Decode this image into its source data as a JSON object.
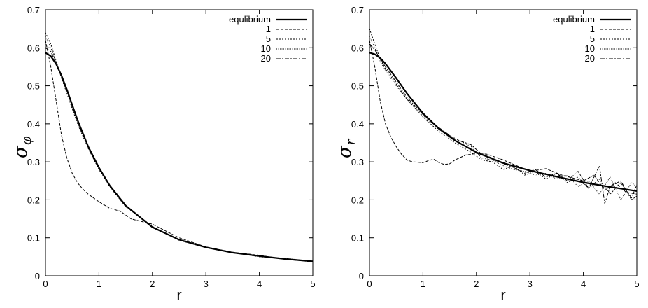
{
  "chart_data": [
    {
      "type": "line",
      "xlabel": "r",
      "ylabel": "σ",
      "ylabel_subscript": "φ",
      "xlim": [
        0,
        5
      ],
      "ylim": [
        0,
        0.7
      ],
      "x_ticks": [
        0,
        1,
        2,
        3,
        4,
        5
      ],
      "y_ticks": [
        0,
        0.1,
        0.2,
        0.3,
        0.4,
        0.5,
        0.6,
        0.7
      ],
      "grid": false,
      "legend_position": "top-right",
      "series": [
        {
          "name": "equlibrium",
          "style": "thick-solid",
          "x": [
            0,
            0.1,
            0.2,
            0.3,
            0.4,
            0.5,
            0.6,
            0.8,
            1.0,
            1.2,
            1.5,
            2.0,
            2.5,
            3.0,
            3.5,
            4.0,
            4.5,
            5.0
          ],
          "y": [
            0.587,
            0.578,
            0.557,
            0.527,
            0.49,
            0.45,
            0.41,
            0.34,
            0.285,
            0.238,
            0.185,
            0.128,
            0.095,
            0.075,
            0.061,
            0.052,
            0.044,
            0.038
          ]
        },
        {
          "name": "1",
          "style": "dashed",
          "x": [
            0,
            0.1,
            0.2,
            0.3,
            0.4,
            0.5,
            0.6,
            0.7,
            0.8,
            1.0,
            1.2,
            1.4,
            1.6,
            1.8,
            2.0,
            2.5,
            3.0,
            3.5,
            4.0,
            4.5,
            5.0
          ],
          "y": [
            0.62,
            0.55,
            0.46,
            0.37,
            0.31,
            0.27,
            0.245,
            0.228,
            0.215,
            0.195,
            0.178,
            0.17,
            0.15,
            0.143,
            0.136,
            0.1,
            0.076,
            0.062,
            0.054,
            0.043,
            0.037
          ]
        },
        {
          "name": "5",
          "style": "dotted",
          "x": [
            0,
            0.1,
            0.2,
            0.3,
            0.4,
            0.5,
            0.6,
            0.8,
            1.0,
            1.2,
            1.5,
            2.0,
            2.5,
            3.0,
            3.5,
            4.0,
            4.5,
            5.0
          ],
          "y": [
            0.64,
            0.61,
            0.565,
            0.52,
            0.48,
            0.44,
            0.4,
            0.335,
            0.28,
            0.235,
            0.182,
            0.13,
            0.093,
            0.076,
            0.06,
            0.051,
            0.045,
            0.036
          ]
        },
        {
          "name": "10",
          "style": "fine-dotted",
          "x": [
            0,
            0.1,
            0.2,
            0.3,
            0.4,
            0.5,
            0.6,
            0.8,
            1.0,
            1.2,
            1.5,
            2.0,
            2.5,
            3.0,
            3.5,
            4.0,
            4.5,
            5.0
          ],
          "y": [
            0.63,
            0.6,
            0.56,
            0.522,
            0.485,
            0.446,
            0.405,
            0.338,
            0.283,
            0.236,
            0.184,
            0.127,
            0.096,
            0.074,
            0.062,
            0.05,
            0.046,
            0.037
          ]
        },
        {
          "name": "20",
          "style": "dash-dot",
          "x": [
            0,
            0.1,
            0.2,
            0.3,
            0.4,
            0.5,
            0.6,
            0.8,
            1.0,
            1.2,
            1.5,
            2.0,
            2.5,
            3.0,
            3.5,
            4.0,
            4.5,
            5.0
          ],
          "y": [
            0.6,
            0.59,
            0.558,
            0.525,
            0.488,
            0.448,
            0.408,
            0.339,
            0.284,
            0.237,
            0.185,
            0.129,
            0.094,
            0.075,
            0.061,
            0.053,
            0.044,
            0.039
          ]
        }
      ]
    },
    {
      "type": "line",
      "xlabel": "r",
      "ylabel": "σ",
      "ylabel_subscript": "r",
      "xlim": [
        0,
        5
      ],
      "ylim": [
        0,
        0.7
      ],
      "x_ticks": [
        0,
        1,
        2,
        3,
        4,
        5
      ],
      "y_ticks": [
        0,
        0.1,
        0.2,
        0.3,
        0.4,
        0.5,
        0.6,
        0.7
      ],
      "grid": false,
      "legend_position": "top-right",
      "series": [
        {
          "name": "equlibrium",
          "style": "thick-solid",
          "x": [
            0,
            0.1,
            0.2,
            0.3,
            0.5,
            0.7,
            1.0,
            1.3,
            1.6,
            2.0,
            2.5,
            3.0,
            3.5,
            4.0,
            4.5,
            5.0
          ],
          "y": [
            0.587,
            0.583,
            0.573,
            0.558,
            0.52,
            0.48,
            0.428,
            0.387,
            0.356,
            0.325,
            0.297,
            0.277,
            0.261,
            0.246,
            0.234,
            0.223
          ]
        },
        {
          "name": "1",
          "style": "dashed",
          "x": [
            0,
            0.1,
            0.2,
            0.3,
            0.4,
            0.5,
            0.6,
            0.7,
            0.8,
            1.0,
            1.1,
            1.2,
            1.3,
            1.4,
            1.5,
            1.6,
            1.8,
            2.0,
            2.2,
            2.5,
            3.0,
            3.3,
            3.6,
            4.0,
            4.2,
            4.4,
            4.6,
            4.8,
            5.0
          ],
          "y": [
            0.62,
            0.55,
            0.46,
            0.4,
            0.365,
            0.34,
            0.32,
            0.305,
            0.3,
            0.298,
            0.303,
            0.307,
            0.298,
            0.293,
            0.295,
            0.305,
            0.318,
            0.322,
            0.32,
            0.305,
            0.275,
            0.282,
            0.265,
            0.25,
            0.265,
            0.225,
            0.245,
            0.22,
            0.215
          ]
        },
        {
          "name": "5",
          "style": "dotted",
          "x": [
            0,
            0.1,
            0.2,
            0.3,
            0.5,
            0.7,
            1.0,
            1.3,
            1.6,
            1.9,
            2.1,
            2.3,
            2.5,
            2.7,
            2.9,
            3.1,
            3.3,
            3.5,
            3.7,
            3.9,
            4.1,
            4.3,
            4.5,
            4.7,
            4.9,
            5.0
          ],
          "y": [
            0.65,
            0.61,
            0.57,
            0.545,
            0.505,
            0.465,
            0.418,
            0.38,
            0.35,
            0.325,
            0.305,
            0.3,
            0.28,
            0.29,
            0.265,
            0.275,
            0.255,
            0.27,
            0.245,
            0.26,
            0.23,
            0.255,
            0.215,
            0.245,
            0.205,
            0.24
          ]
        },
        {
          "name": "10",
          "style": "fine-dotted",
          "x": [
            0,
            0.1,
            0.2,
            0.3,
            0.5,
            0.7,
            1.0,
            1.3,
            1.6,
            1.9,
            2.1,
            2.3,
            2.5,
            2.7,
            2.9,
            3.1,
            3.3,
            3.5,
            3.7,
            3.9,
            4.1,
            4.3,
            4.5,
            4.7,
            4.9,
            5.0
          ],
          "y": [
            0.63,
            0.6,
            0.565,
            0.54,
            0.5,
            0.465,
            0.422,
            0.385,
            0.362,
            0.34,
            0.31,
            0.305,
            0.29,
            0.28,
            0.275,
            0.265,
            0.27,
            0.255,
            0.265,
            0.235,
            0.25,
            0.215,
            0.26,
            0.2,
            0.245,
            0.235
          ]
        },
        {
          "name": "20",
          "style": "dash-dot",
          "x": [
            0,
            0.1,
            0.2,
            0.3,
            0.5,
            0.7,
            1.0,
            1.3,
            1.6,
            1.9,
            2.1,
            2.3,
            2.5,
            2.7,
            2.9,
            3.1,
            3.3,
            3.5,
            3.7,
            3.9,
            4.1,
            4.3,
            4.4,
            4.5,
            4.7,
            4.9,
            5.0
          ],
          "y": [
            0.61,
            0.595,
            0.57,
            0.55,
            0.51,
            0.47,
            0.425,
            0.39,
            0.36,
            0.345,
            0.32,
            0.31,
            0.295,
            0.285,
            0.27,
            0.28,
            0.26,
            0.27,
            0.25,
            0.275,
            0.23,
            0.29,
            0.19,
            0.235,
            0.25,
            0.2,
            0.21
          ]
        }
      ]
    }
  ]
}
